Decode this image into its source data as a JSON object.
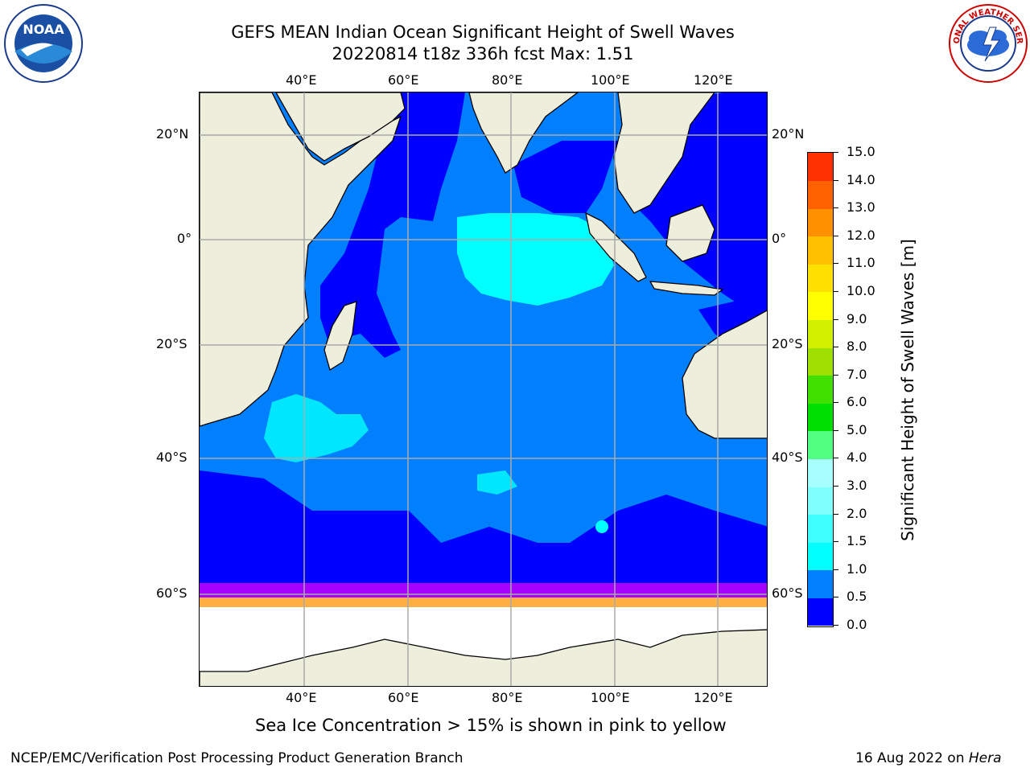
{
  "title": {
    "line1": "GEFS MEAN Indian Ocean Significant Height of Swell Waves",
    "line2": "20220814 t18z 336h fcst   Max: 1.51"
  },
  "logos": {
    "left": "NOAA",
    "right": "NATIONAL WEATHER SERVICE"
  },
  "map": {
    "lon_labels": [
      "40°E",
      "60°E",
      "80°E",
      "100°E",
      "120°E"
    ],
    "lat_labels": [
      "20°N",
      "0°",
      "20°S",
      "40°S",
      "60°S"
    ],
    "lon_range": [
      20,
      130
    ],
    "lat_range": [
      -74,
      28
    ],
    "grid": true
  },
  "colorbar": {
    "label": "Significant Height of Swell Waves [m]",
    "ticks": [
      "0.0",
      "0.5",
      "1.0",
      "1.5",
      "2.0",
      "3.0",
      "4.0",
      "5.0",
      "6.0",
      "7.0",
      "8.0",
      "9.0",
      "10.0",
      "11.0",
      "12.0",
      "13.0",
      "14.0",
      "15.0"
    ],
    "colors": [
      "#0000ff",
      "#0080ff",
      "#00ffff",
      "#40ffff",
      "#80ffff",
      "#a8ffff",
      "#50ff80",
      "#00e000",
      "#40e000",
      "#a0e000",
      "#d0f000",
      "#ffff00",
      "#ffe000",
      "#ffc000",
      "#ff9000",
      "#ff6000",
      "#ff3000",
      "#ff0000"
    ]
  },
  "footer": {
    "note": "Sea Ice Concentration > 15% is shown in pink to yellow",
    "left": "NCEP/EMC/Verification Post Processing Product Generation Branch",
    "right_date": "16 Aug 2022 on ",
    "right_host": "Hera"
  },
  "colors": {
    "land": "#eeeedd",
    "ocean_main": "#0080ff",
    "ocean_low": "#0000ff",
    "ocean_mid": "#00ffff",
    "ice": "#ffffff"
  }
}
